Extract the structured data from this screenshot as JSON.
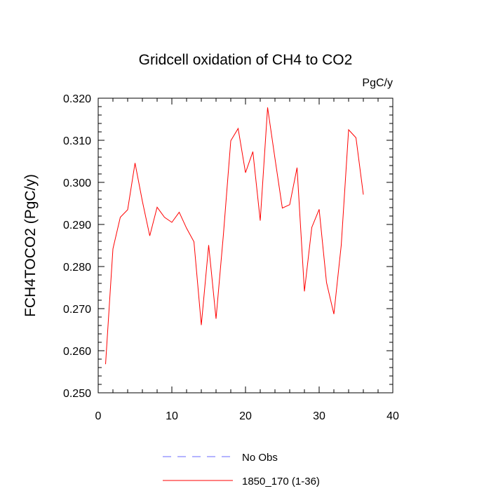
{
  "chart_data": {
    "type": "line",
    "title": "Gridcell oxidation of CH4 to CO2",
    "units_label": "PgC/y",
    "ylabel": "FCH4TOCO2  (PgC/y)",
    "xlabel": "",
    "xlim": [
      0,
      40
    ],
    "ylim": [
      0.25,
      0.32
    ],
    "x_ticks": [
      0,
      10,
      20,
      30,
      40
    ],
    "x_tick_labels": [
      "0",
      "10",
      "20",
      "30",
      "40"
    ],
    "y_ticks": [
      0.25,
      0.26,
      0.27,
      0.28,
      0.29,
      0.3,
      0.31,
      0.32
    ],
    "y_tick_labels": [
      "0.250",
      "0.260",
      "0.270",
      "0.280",
      "0.290",
      "0.300",
      "0.310",
      "0.320"
    ],
    "grid": false,
    "legend": [
      {
        "label": "No Obs",
        "color": "#6a6aff",
        "style": "dashed"
      },
      {
        "label": "1850_170 (1-36)",
        "color": "#ff0000",
        "style": "solid"
      }
    ],
    "series": [
      {
        "name": "1850_170 (1-36)",
        "color": "#ff0000",
        "x": [
          1,
          2,
          3,
          4,
          5,
          6,
          7,
          8,
          9,
          10,
          11,
          12,
          13,
          14,
          15,
          16,
          17,
          18,
          19,
          20,
          21,
          22,
          23,
          24,
          25,
          26,
          27,
          28,
          29,
          30,
          31,
          32,
          33,
          34,
          35,
          36
        ],
        "values": [
          0.2568,
          0.2842,
          0.2917,
          0.2935,
          0.3046,
          0.2955,
          0.2873,
          0.2941,
          0.2917,
          0.2905,
          0.2929,
          0.2891,
          0.2859,
          0.2661,
          0.2851,
          0.2676,
          0.2876,
          0.3099,
          0.3128,
          0.3023,
          0.3073,
          0.2909,
          0.3178,
          0.3057,
          0.2939,
          0.2947,
          0.3035,
          0.2741,
          0.2893,
          0.2936,
          0.2762,
          0.2687,
          0.2851,
          0.3125,
          0.3106,
          0.2971
        ]
      }
    ]
  }
}
